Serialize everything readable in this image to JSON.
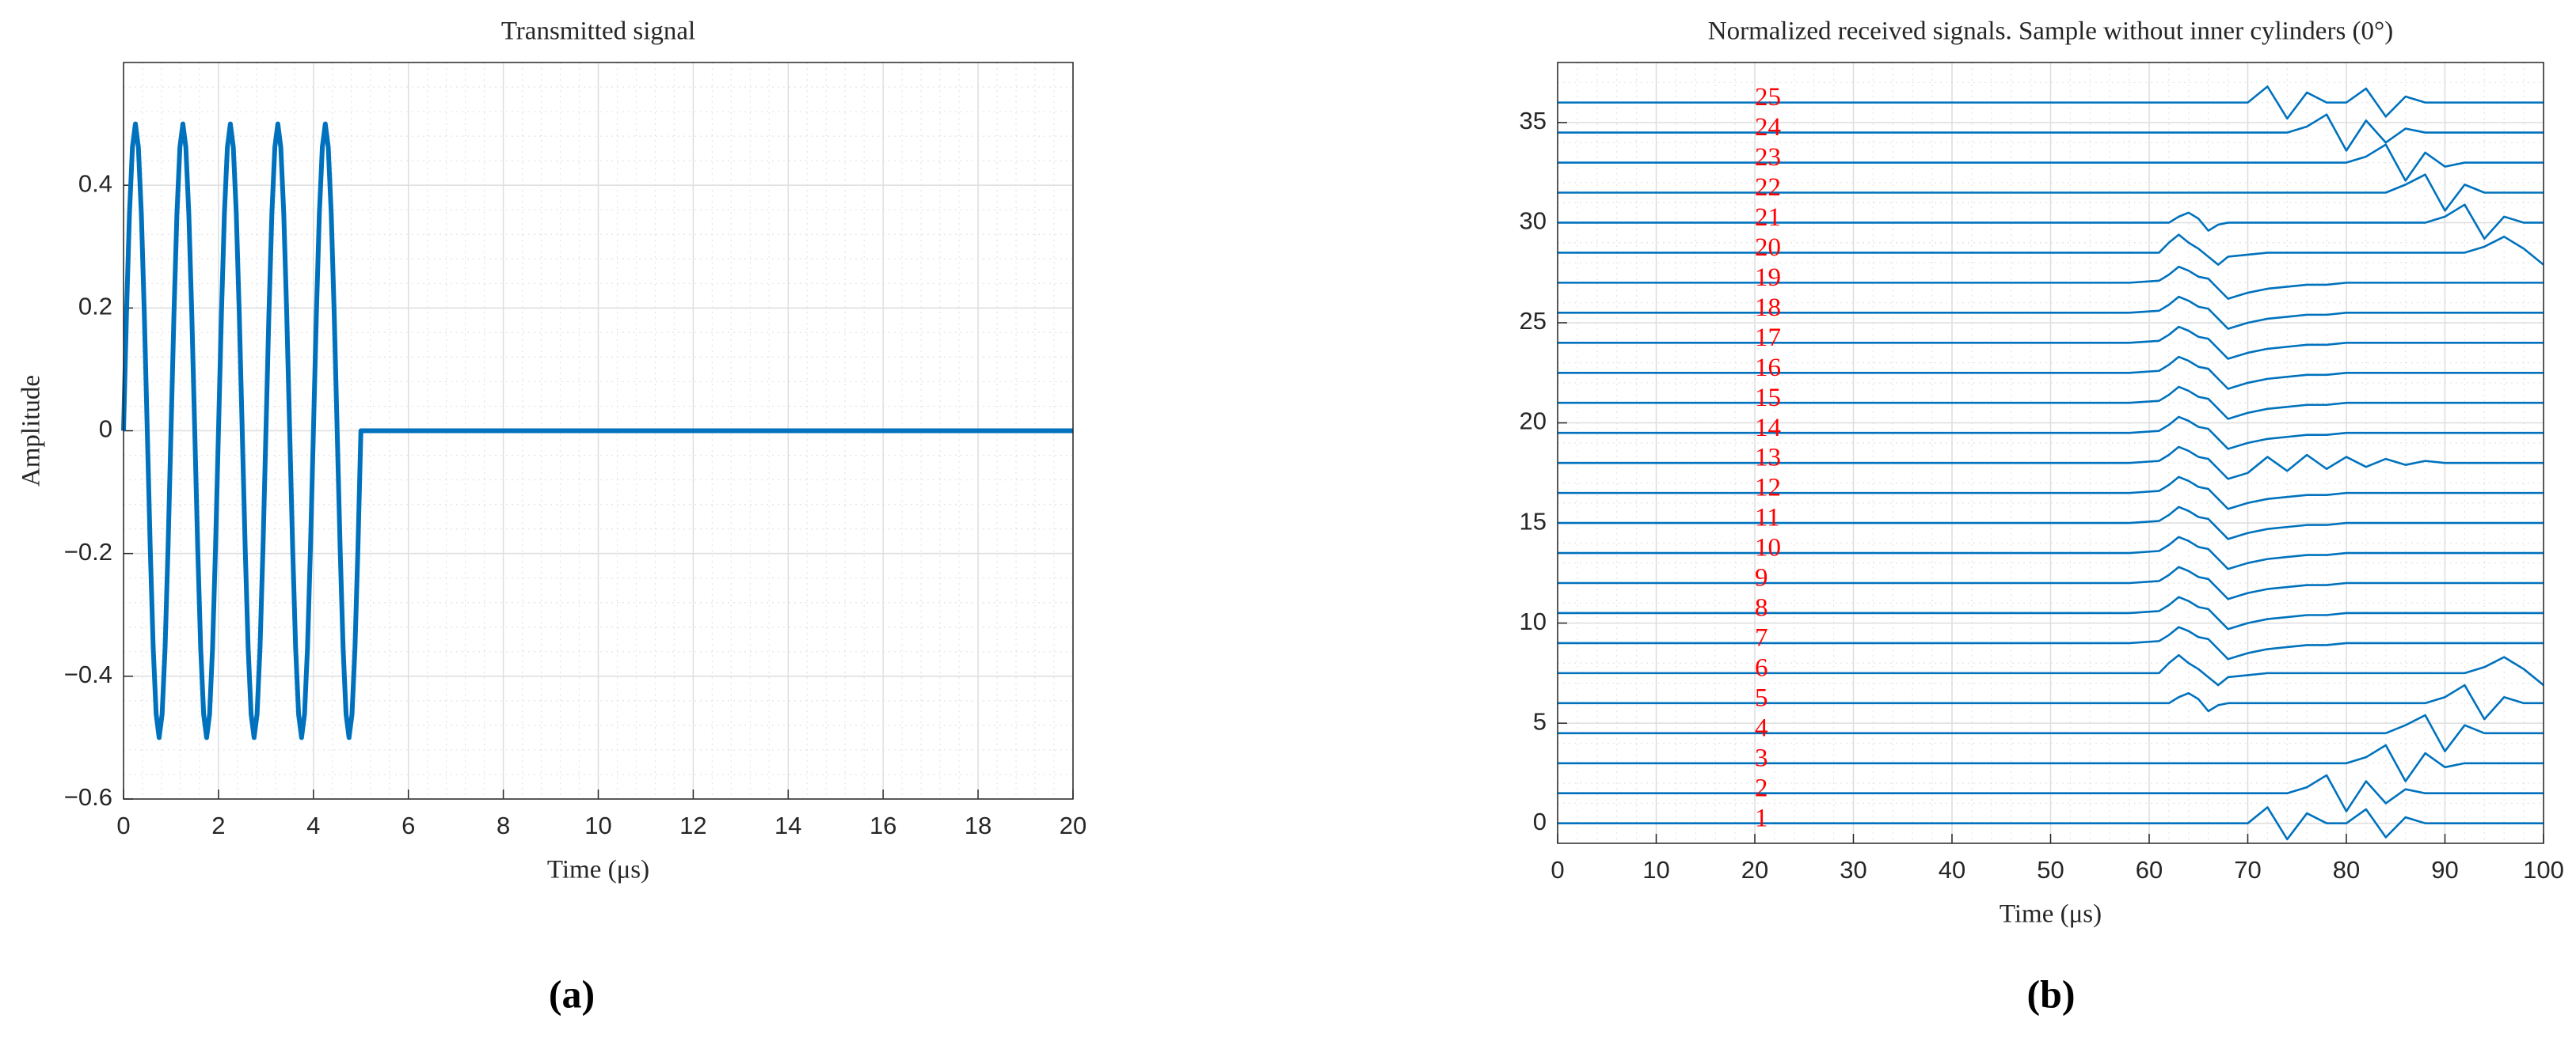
{
  "chart_data": [
    {
      "type": "line",
      "title": "Transmitted signal",
      "xlabel": "Time (μs)",
      "ylabel": "Amplitude",
      "caption": "(a)",
      "color": "#0072bd",
      "grid": true,
      "minor_grid": true,
      "xlim": [
        0,
        20
      ],
      "xticks": [
        0,
        2,
        4,
        6,
        8,
        10,
        12,
        14,
        16,
        18,
        20
      ],
      "ylim": [
        -0.6,
        0.6
      ],
      "yticks": [
        {
          "value": -0.6,
          "label": "−0.6"
        },
        {
          "value": -0.4,
          "label": "−0.4"
        },
        {
          "value": -0.2,
          "label": "−0.2"
        },
        0,
        0.2,
        0.4
      ],
      "x": [
        0,
        0.0625,
        0.125,
        0.1875,
        0.25,
        0.3125,
        0.375,
        0.4375,
        0.5,
        0.5625,
        0.625,
        0.6875,
        0.75,
        0.8125,
        0.875,
        0.9375,
        1,
        1.0625,
        1.125,
        1.1875,
        1.25,
        1.3125,
        1.375,
        1.4375,
        1.5,
        1.5625,
        1.625,
        1.6875,
        1.75,
        1.8125,
        1.875,
        1.9375,
        2,
        2.0625,
        2.125,
        2.1875,
        2.25,
        2.3125,
        2.375,
        2.4375,
        2.5,
        2.5625,
        2.625,
        2.6875,
        2.75,
        2.8125,
        2.875,
        2.9375,
        3,
        3.0625,
        3.125,
        3.1875,
        3.25,
        3.3125,
        3.375,
        3.4375,
        3.5,
        3.5625,
        3.625,
        3.6875,
        3.75,
        3.8125,
        3.875,
        3.9375,
        4,
        4.0625,
        4.125,
        4.1875,
        4.25,
        4.3125,
        4.375,
        4.4375,
        4.5,
        4.5625,
        4.625,
        4.6875,
        4.75,
        4.8125,
        4.875,
        4.9375,
        5,
        20
      ],
      "values": [
        0,
        0.191,
        0.354,
        0.462,
        0.5,
        0.462,
        0.354,
        0.191,
        0,
        -0.191,
        -0.354,
        -0.462,
        -0.5,
        -0.462,
        -0.354,
        -0.191,
        0,
        0.191,
        0.354,
        0.462,
        0.5,
        0.462,
        0.354,
        0.191,
        0,
        -0.191,
        -0.354,
        -0.462,
        -0.5,
        -0.462,
        -0.354,
        -0.191,
        0,
        0.191,
        0.354,
        0.462,
        0.5,
        0.462,
        0.354,
        0.191,
        0,
        -0.191,
        -0.354,
        -0.462,
        -0.5,
        -0.462,
        -0.354,
        -0.191,
        0,
        0.191,
        0.354,
        0.462,
        0.5,
        0.462,
        0.354,
        0.191,
        0,
        -0.191,
        -0.354,
        -0.462,
        -0.5,
        -0.462,
        -0.354,
        -0.191,
        0,
        0.191,
        0.354,
        0.462,
        0.5,
        0.462,
        0.354,
        0.191,
        0,
        -0.191,
        -0.354,
        -0.462,
        -0.5,
        -0.462,
        -0.354,
        -0.191,
        0,
        0
      ]
    },
    {
      "type": "line",
      "title": "Normalized received signals. Sample without inner cylinders (0°)",
      "xlabel": "Time (μs)",
      "caption": "(b)",
      "color": "#0072bd",
      "label_color": "#ff0000",
      "label_x": 20,
      "grid": true,
      "minor_grid": true,
      "xlim": [
        0,
        100
      ],
      "xticks": [
        0,
        10,
        20,
        30,
        40,
        50,
        60,
        70,
        80,
        90,
        100
      ],
      "ylim": [
        -1,
        38
      ],
      "yticks": [
        0,
        5,
        10,
        15,
        20,
        25,
        30,
        35
      ],
      "x": [
        0,
        58,
        61,
        62,
        63,
        64,
        65,
        66,
        67,
        68,
        70,
        72,
        74,
        76,
        78,
        80,
        82,
        84,
        86,
        88,
        90,
        92,
        94,
        96,
        98,
        100
      ],
      "series": [
        {
          "name": "1",
          "values": [
            0,
            0,
            0,
            0,
            0,
            0,
            0,
            0,
            0,
            0,
            0,
            0.8,
            -0.8,
            0.5,
            0,
            0,
            0.7,
            -0.7,
            0.3,
            0,
            0,
            0,
            0,
            0,
            0,
            0
          ]
        },
        {
          "name": "2",
          "values": [
            1.5,
            1.5,
            1.5,
            1.5,
            1.5,
            1.5,
            1.5,
            1.5,
            1.5,
            1.5,
            1.5,
            1.5,
            1.5,
            1.8,
            2.4,
            0.6,
            2.1,
            1.0,
            1.7,
            1.5,
            1.5,
            1.5,
            1.5,
            1.5,
            1.5,
            1.5
          ]
        },
        {
          "name": "3",
          "values": [
            3,
            3,
            3,
            3,
            3,
            3,
            3,
            3,
            3,
            3,
            3,
            3,
            3,
            3,
            3,
            3,
            3.3,
            3.9,
            2.1,
            3.5,
            2.8,
            3,
            3,
            3,
            3,
            3
          ]
        },
        {
          "name": "4",
          "values": [
            4.5,
            4.5,
            4.5,
            4.5,
            4.5,
            4.5,
            4.5,
            4.5,
            4.5,
            4.5,
            4.5,
            4.5,
            4.5,
            4.5,
            4.5,
            4.5,
            4.5,
            4.5,
            4.9,
            5.4,
            3.6,
            4.9,
            4.5,
            4.5,
            4.5,
            4.5
          ]
        },
        {
          "name": "5",
          "values": [
            6,
            6,
            6,
            6,
            6.3,
            6.5,
            6.2,
            5.6,
            5.9,
            6,
            6,
            6,
            6,
            6,
            6,
            6,
            6,
            6,
            6,
            6,
            6.3,
            6.9,
            5.2,
            6.3,
            6,
            6
          ]
        },
        {
          "name": "6",
          "values": [
            7.5,
            7.5,
            7.5,
            8,
            8.4,
            8,
            7.7,
            7.3,
            6.9,
            7.3,
            7.4,
            7.5,
            7.5,
            7.5,
            7.5,
            7.5,
            7.5,
            7.5,
            7.5,
            7.5,
            7.5,
            7.5,
            7.8,
            8.3,
            7.7,
            6.9
          ]
        },
        {
          "name": "7",
          "values": [
            9,
            9,
            9.1,
            9.4,
            9.8,
            9.6,
            9.3,
            9.2,
            8.7,
            8.2,
            8.5,
            8.7,
            8.8,
            8.9,
            8.9,
            9,
            9,
            9,
            9,
            9,
            9,
            9,
            9,
            9,
            9,
            9
          ]
        },
        {
          "name": "8",
          "values": [
            10.5,
            10.5,
            10.6,
            10.9,
            11.3,
            11.1,
            10.8,
            10.7,
            10.2,
            9.7,
            10,
            10.2,
            10.3,
            10.4,
            10.4,
            10.5,
            10.5,
            10.5,
            10.5,
            10.5,
            10.5,
            10.5,
            10.5,
            10.5,
            10.5,
            10.5
          ]
        },
        {
          "name": "9",
          "values": [
            12,
            12,
            12.1,
            12.4,
            12.8,
            12.6,
            12.3,
            12.2,
            11.7,
            11.2,
            11.5,
            11.7,
            11.8,
            11.9,
            11.9,
            12,
            12,
            12,
            12,
            12,
            12,
            12,
            12,
            12,
            12,
            12
          ]
        },
        {
          "name": "10",
          "values": [
            13.5,
            13.5,
            13.6,
            13.9,
            14.3,
            14.1,
            13.8,
            13.7,
            13.2,
            12.7,
            13,
            13.2,
            13.3,
            13.4,
            13.4,
            13.5,
            13.5,
            13.5,
            13.5,
            13.5,
            13.5,
            13.5,
            13.5,
            13.5,
            13.5,
            13.5
          ]
        },
        {
          "name": "11",
          "values": [
            15,
            15,
            15.1,
            15.4,
            15.8,
            15.6,
            15.3,
            15.2,
            14.7,
            14.2,
            14.5,
            14.7,
            14.8,
            14.9,
            14.9,
            15,
            15,
            15,
            15,
            15,
            15,
            15,
            15,
            15,
            15,
            15
          ]
        },
        {
          "name": "12",
          "values": [
            16.5,
            16.5,
            16.6,
            16.9,
            17.3,
            17.1,
            16.8,
            16.7,
            16.2,
            15.7,
            16,
            16.2,
            16.3,
            16.4,
            16.4,
            16.5,
            16.5,
            16.5,
            16.5,
            16.5,
            16.5,
            16.5,
            16.5,
            16.5,
            16.5,
            16.5
          ]
        },
        {
          "name": "13",
          "values": [
            18,
            18,
            18.1,
            18.4,
            18.8,
            18.6,
            18.3,
            18.2,
            17.7,
            17.2,
            17.5,
            18.3,
            17.6,
            18.4,
            17.7,
            18.3,
            17.8,
            18.2,
            17.9,
            18.1,
            18,
            18,
            18,
            18,
            18,
            18
          ]
        },
        {
          "name": "14",
          "values": [
            19.5,
            19.5,
            19.6,
            19.9,
            20.3,
            20.1,
            19.8,
            19.7,
            19.2,
            18.7,
            19,
            19.2,
            19.3,
            19.4,
            19.4,
            19.5,
            19.5,
            19.5,
            19.5,
            19.5,
            19.5,
            19.5,
            19.5,
            19.5,
            19.5,
            19.5
          ]
        },
        {
          "name": "15",
          "values": [
            21,
            21,
            21.1,
            21.4,
            21.8,
            21.6,
            21.3,
            21.2,
            20.7,
            20.2,
            20.5,
            20.7,
            20.8,
            20.9,
            20.9,
            21,
            21,
            21,
            21,
            21,
            21,
            21,
            21,
            21,
            21,
            21
          ]
        },
        {
          "name": "16",
          "values": [
            22.5,
            22.5,
            22.6,
            22.9,
            23.3,
            23.1,
            22.8,
            22.7,
            22.2,
            21.7,
            22,
            22.2,
            22.3,
            22.4,
            22.4,
            22.5,
            22.5,
            22.5,
            22.5,
            22.5,
            22.5,
            22.5,
            22.5,
            22.5,
            22.5,
            22.5
          ]
        },
        {
          "name": "17",
          "values": [
            24,
            24,
            24.1,
            24.4,
            24.8,
            24.6,
            24.3,
            24.2,
            23.7,
            23.2,
            23.5,
            23.7,
            23.8,
            23.9,
            23.9,
            24,
            24,
            24,
            24,
            24,
            24,
            24,
            24,
            24,
            24,
            24
          ]
        },
        {
          "name": "18",
          "values": [
            25.5,
            25.5,
            25.6,
            25.9,
            26.3,
            26.1,
            25.8,
            25.7,
            25.2,
            24.7,
            25,
            25.2,
            25.3,
            25.4,
            25.4,
            25.5,
            25.5,
            25.5,
            25.5,
            25.5,
            25.5,
            25.5,
            25.5,
            25.5,
            25.5,
            25.5
          ]
        },
        {
          "name": "19",
          "values": [
            27,
            27,
            27.1,
            27.4,
            27.8,
            27.6,
            27.3,
            27.2,
            26.7,
            26.2,
            26.5,
            26.7,
            26.8,
            26.9,
            26.9,
            27,
            27,
            27,
            27,
            27,
            27,
            27,
            27,
            27,
            27,
            27
          ]
        },
        {
          "name": "20",
          "values": [
            28.5,
            28.5,
            28.5,
            29,
            29.4,
            29,
            28.7,
            28.3,
            27.9,
            28.3,
            28.4,
            28.5,
            28.5,
            28.5,
            28.5,
            28.5,
            28.5,
            28.5,
            28.5,
            28.5,
            28.5,
            28.5,
            28.8,
            29.3,
            28.7,
            27.9
          ]
        },
        {
          "name": "21",
          "values": [
            30,
            30,
            30,
            30,
            30.3,
            30.5,
            30.2,
            29.6,
            29.9,
            30,
            30,
            30,
            30,
            30,
            30,
            30,
            30,
            30,
            30,
            30,
            30.3,
            30.9,
            29.2,
            30.3,
            30,
            30
          ]
        },
        {
          "name": "22",
          "values": [
            31.5,
            31.5,
            31.5,
            31.5,
            31.5,
            31.5,
            31.5,
            31.5,
            31.5,
            31.5,
            31.5,
            31.5,
            31.5,
            31.5,
            31.5,
            31.5,
            31.5,
            31.5,
            31.9,
            32.4,
            30.6,
            31.9,
            31.5,
            31.5,
            31.5,
            31.5
          ]
        },
        {
          "name": "23",
          "values": [
            33,
            33,
            33,
            33,
            33,
            33,
            33,
            33,
            33,
            33,
            33,
            33,
            33,
            33,
            33,
            33,
            33.3,
            33.9,
            32.1,
            33.5,
            32.8,
            33,
            33,
            33,
            33,
            33
          ]
        },
        {
          "name": "24",
          "values": [
            34.5,
            34.5,
            34.5,
            34.5,
            34.5,
            34.5,
            34.5,
            34.5,
            34.5,
            34.5,
            34.5,
            34.5,
            34.5,
            34.8,
            35.4,
            33.6,
            35.1,
            34.0,
            34.7,
            34.5,
            34.5,
            34.5,
            34.5,
            34.5,
            34.5,
            34.5
          ]
        },
        {
          "name": "25",
          "values": [
            36,
            36,
            36,
            36,
            36,
            36,
            36,
            36,
            36,
            36,
            36,
            36.8,
            35.2,
            36.5,
            36,
            36,
            36.7,
            35.3,
            36.3,
            36,
            36,
            36,
            36,
            36,
            36,
            36
          ]
        }
      ]
    }
  ]
}
